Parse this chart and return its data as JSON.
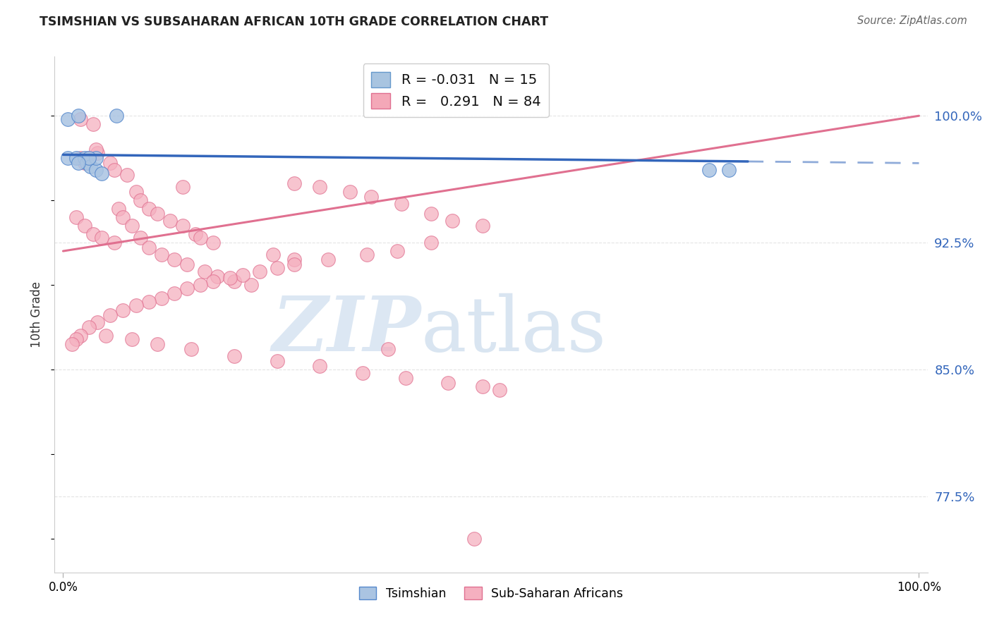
{
  "title": "TSIMSHIAN VS SUBSAHARAN AFRICAN 10TH GRADE CORRELATION CHART",
  "source_text": "Source: ZipAtlas.com",
  "ylabel": "10th Grade",
  "y_ticks": [
    0.775,
    0.85,
    0.925,
    1.0
  ],
  "y_tick_labels": [
    "77.5%",
    "85.0%",
    "92.5%",
    "100.0%"
  ],
  "legend_entries": [
    {
      "color": "#a8c4e0",
      "border": "#6699cc",
      "R": "-0.031",
      "N": "15"
    },
    {
      "color": "#f4a8b8",
      "border": "#e07090",
      "R": " 0.291",
      "N": "84"
    }
  ],
  "legend_labels": [
    "Tsimshian",
    "Sub-Saharan Africans"
  ],
  "tsimshian_x": [
    0.005,
    0.018,
    0.062,
    0.005,
    0.015,
    0.025,
    0.028,
    0.032,
    0.038,
    0.045,
    0.038,
    0.03,
    0.018,
    0.755,
    0.778
  ],
  "tsimshian_y": [
    0.998,
    1.0,
    1.0,
    0.975,
    0.975,
    0.975,
    0.972,
    0.97,
    0.968,
    0.966,
    0.975,
    0.975,
    0.972,
    0.968,
    0.968
  ],
  "subsaharan_x": [
    0.02,
    0.035,
    0.02,
    0.025,
    0.03,
    0.04,
    0.055,
    0.038,
    0.06,
    0.075,
    0.085,
    0.09,
    0.1,
    0.11,
    0.125,
    0.14,
    0.155,
    0.14,
    0.16,
    0.175,
    0.015,
    0.025,
    0.035,
    0.045,
    0.06,
    0.065,
    0.07,
    0.08,
    0.09,
    0.1,
    0.115,
    0.13,
    0.145,
    0.165,
    0.18,
    0.2,
    0.22,
    0.245,
    0.27,
    0.27,
    0.3,
    0.335,
    0.36,
    0.395,
    0.43,
    0.455,
    0.49,
    0.43,
    0.39,
    0.355,
    0.31,
    0.27,
    0.25,
    0.23,
    0.21,
    0.195,
    0.175,
    0.16,
    0.145,
    0.13,
    0.115,
    0.1,
    0.085,
    0.07,
    0.055,
    0.04,
    0.03,
    0.02,
    0.015,
    0.01,
    0.05,
    0.08,
    0.11,
    0.15,
    0.2,
    0.25,
    0.3,
    0.35,
    0.4,
    0.45,
    0.49,
    0.51,
    0.38,
    0.48
  ],
  "subsaharan_y": [
    0.998,
    0.995,
    0.975,
    0.972,
    0.975,
    0.978,
    0.972,
    0.98,
    0.968,
    0.965,
    0.955,
    0.95,
    0.945,
    0.942,
    0.938,
    0.935,
    0.93,
    0.958,
    0.928,
    0.925,
    0.94,
    0.935,
    0.93,
    0.928,
    0.925,
    0.945,
    0.94,
    0.935,
    0.928,
    0.922,
    0.918,
    0.915,
    0.912,
    0.908,
    0.905,
    0.902,
    0.9,
    0.918,
    0.915,
    0.96,
    0.958,
    0.955,
    0.952,
    0.948,
    0.942,
    0.938,
    0.935,
    0.925,
    0.92,
    0.918,
    0.915,
    0.912,
    0.91,
    0.908,
    0.906,
    0.904,
    0.902,
    0.9,
    0.898,
    0.895,
    0.892,
    0.89,
    0.888,
    0.885,
    0.882,
    0.878,
    0.875,
    0.87,
    0.868,
    0.865,
    0.87,
    0.868,
    0.865,
    0.862,
    0.858,
    0.855,
    0.852,
    0.848,
    0.845,
    0.842,
    0.84,
    0.838,
    0.862,
    0.75
  ],
  "tsimshian_color": "#aac4e2",
  "tsimshian_edge": "#5588cc",
  "subsaharan_color": "#f5b0c0",
  "subsaharan_edge": "#e07090",
  "tsimshian_line_color": "#3366bb",
  "subsaharan_line_color": "#e07090",
  "grid_color": "#dddddd",
  "background_color": "#ffffff",
  "watermark_zip": "ZIP",
  "watermark_atlas": "atlas",
  "watermark_color_zip": "#c8d8ea",
  "watermark_color_atlas": "#b8cce0",
  "right_tick_color": "#3366bb",
  "ylim_min": 0.73,
  "ylim_max": 1.035,
  "xlim_min": -0.01,
  "xlim_max": 1.01
}
